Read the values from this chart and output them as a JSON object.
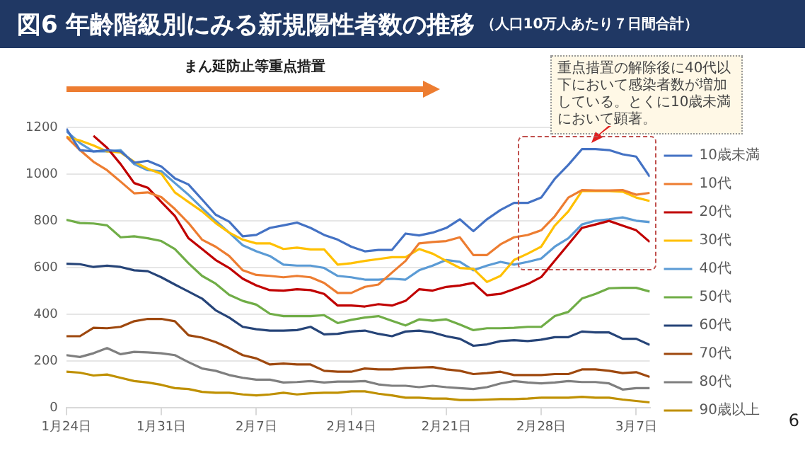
{
  "chart_data": {
    "type": "line",
    "title": "図6 年齢階級別にみる新規陽性者数の推移",
    "subtitle": "（人口10万人あたり７日間合計）",
    "annotations": [
      "まん延防止等重点措置",
      "重点措置の解除後に40代以下において感染者数が増加している。とくに10歳未満において顕著。",
      "6"
    ],
    "x": [
      "--01-24",
      "--01-25",
      "--01-26",
      "--01-27",
      "--01-28",
      "--01-29",
      "--01-30",
      "--01-31",
      "--02-01",
      "--02-02",
      "--02-03",
      "--02-04",
      "--02-05",
      "--02-06",
      "--02-07",
      "--02-08",
      "--02-09",
      "--02-10",
      "--02-11",
      "--02-12",
      "--02-13",
      "--02-14",
      "--02-15",
      "--02-16",
      "--02-17",
      "--02-18",
      "--02-19",
      "--02-20",
      "--02-21",
      "--02-22",
      "--02-23",
      "--02-24",
      "--02-25",
      "--02-26",
      "--02-27",
      "--02-28",
      "--03-01",
      "--03-02",
      "--03-03",
      "--03-04",
      "--03-05",
      "--03-06",
      "--03-07",
      "--03-08"
    ],
    "xlim": [
      "--01-24",
      "--03-08"
    ],
    "xticks": [
      {
        "value": "--01-24",
        "label": "1月24日"
      },
      {
        "value": "--01-31",
        "label": "1月31日"
      },
      {
        "value": "--02-07",
        "label": "2月7日"
      },
      {
        "value": "--02-14",
        "label": "2月14日"
      },
      {
        "value": "--02-21",
        "label": "2月21日"
      },
      {
        "value": "--02-28",
        "label": "2月28日"
      },
      {
        "value": "--03-07",
        "label": "3月7日"
      }
    ],
    "ylim": [
      0,
      1200
    ],
    "yticks": [
      0,
      200,
      400,
      600,
      800,
      1000,
      1200
    ],
    "grid": "y",
    "legend": "right",
    "marker": "none",
    "line_style": "solid",
    "series": [
      {
        "name": "10歳未満",
        "color": "#4472c4",
        "values": [
          1194,
          1103,
          1097,
          1103,
          1097,
          1049,
          1057,
          1033,
          982,
          956,
          892,
          827,
          797,
          734,
          740,
          770,
          781,
          793,
          770,
          740,
          720,
          690,
          670,
          676,
          676,
          746,
          738,
          750,
          770,
          807,
          756,
          807,
          847,
          877,
          877,
          900,
          980,
          1040,
          1107,
          1107,
          1103,
          1085,
          1075,
          989
        ]
      },
      {
        "name": "10代",
        "color": "#ed7d31",
        "values": [
          1160,
          1103,
          1053,
          1017,
          968,
          918,
          922,
          902,
          851,
          791,
          720,
          690,
          650,
          589,
          569,
          565,
          559,
          565,
          559,
          535,
          492,
          492,
          518,
          528,
          579,
          629,
          704,
          710,
          714,
          730,
          654,
          654,
          700,
          730,
          740,
          760,
          820,
          900,
          932,
          930,
          930,
          932,
          912,
          920
        ]
      },
      {
        "name": "20代",
        "color": "#c00000",
        "values": [
          null,
          null,
          1164,
          1113,
          1043,
          962,
          942,
          881,
          821,
          726,
          680,
          633,
          599,
          553,
          524,
          504,
          502,
          508,
          504,
          488,
          438,
          438,
          434,
          444,
          438,
          458,
          508,
          502,
          518,
          524,
          535,
          482,
          488,
          508,
          530,
          560,
          630,
          700,
          770,
          785,
          800,
          780,
          760,
          710
        ]
      },
      {
        "name": "30代",
        "color": "#ffc000",
        "values": [
          1160,
          1144,
          1123,
          1097,
          1093,
          1053,
          1023,
          1002,
          922,
          881,
          841,
          791,
          750,
          720,
          704,
          704,
          680,
          686,
          678,
          678,
          613,
          619,
          629,
          637,
          645,
          645,
          680,
          660,
          629,
          599,
          595,
          539,
          565,
          633,
          660,
          690,
          780,
          841,
          928,
          928,
          928,
          925,
          900,
          885
        ]
      },
      {
        "name": "40代",
        "color": "#5b9bd5",
        "values": [
          1184,
          1133,
          1097,
          1097,
          1103,
          1043,
          1017,
          1013,
          962,
          912,
          855,
          801,
          750,
          696,
          670,
          650,
          613,
          609,
          609,
          599,
          565,
          559,
          549,
          549,
          553,
          549,
          589,
          609,
          633,
          625,
          589,
          609,
          625,
          613,
          625,
          639,
          690,
          726,
          785,
          801,
          807,
          815,
          801,
          795
        ]
      },
      {
        "name": "50代",
        "color": "#70ad47",
        "values": [
          805,
          791,
          789,
          781,
          730,
          734,
          726,
          714,
          680,
          619,
          565,
          532,
          484,
          458,
          442,
          403,
          393,
          393,
          393,
          397,
          363,
          377,
          387,
          393,
          373,
          353,
          379,
          373,
          379,
          357,
          333,
          341,
          341,
          343,
          347,
          347,
          393,
          411,
          468,
          488,
          512,
          514,
          514,
          498
        ]
      },
      {
        "name": "60代",
        "color": "#264478",
        "values": [
          617,
          615,
          603,
          609,
          603,
          589,
          585,
          559,
          528,
          498,
          468,
          418,
          387,
          347,
          337,
          331,
          331,
          333,
          347,
          315,
          317,
          327,
          331,
          317,
          307,
          327,
          331,
          323,
          307,
          296,
          266,
          272,
          286,
          290,
          286,
          292,
          303,
          303,
          327,
          323,
          323,
          296,
          296,
          270
        ]
      },
      {
        "name": "70代",
        "color": "#9e480e",
        "values": [
          307,
          307,
          343,
          341,
          347,
          371,
          381,
          381,
          371,
          311,
          301,
          282,
          256,
          226,
          212,
          186,
          190,
          186,
          186,
          159,
          155,
          155,
          169,
          165,
          165,
          171,
          173,
          175,
          165,
          159,
          145,
          149,
          155,
          141,
          141,
          141,
          145,
          145,
          165,
          165,
          159,
          149,
          153,
          133
        ]
      },
      {
        "name": "80代",
        "color": "#7f7f7f",
        "values": [
          226,
          218,
          234,
          256,
          230,
          240,
          238,
          234,
          226,
          196,
          169,
          159,
          141,
          129,
          121,
          121,
          109,
          111,
          115,
          109,
          113,
          113,
          115,
          101,
          95,
          95,
          89,
          95,
          89,
          85,
          81,
          89,
          105,
          115,
          109,
          105,
          109,
          115,
          111,
          111,
          105,
          79,
          85,
          85
        ]
      },
      {
        "name": "90歳以上",
        "color": "#bf9000",
        "values": [
          155,
          151,
          139,
          143,
          129,
          115,
          109,
          99,
          85,
          81,
          69,
          65,
          65,
          58,
          54,
          58,
          65,
          58,
          63,
          65,
          65,
          71,
          71,
          61,
          54,
          44,
          44,
          40,
          40,
          34,
          34,
          36,
          38,
          38,
          40,
          44,
          44,
          44,
          48,
          44,
          44,
          36,
          30,
          24
        ]
      }
    ]
  }
}
